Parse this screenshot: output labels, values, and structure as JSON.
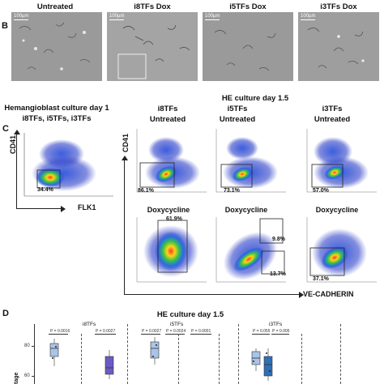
{
  "panel_b": {
    "letter": "B",
    "columns": [
      "Untreated",
      "i8TFs Dox",
      "i5TFs Dox",
      "i3TFs Dox"
    ],
    "scale_bar": "100µm"
  },
  "panel_c": {
    "letter": "C",
    "left_title_line1": "Hemangioblast culture day 1",
    "left_title_line2": "i8TFs, i5TFs, i3TFs",
    "he_title": "HE culture day 1.5",
    "lines": [
      "i8TFs",
      "i5TFs",
      "i3TFs"
    ],
    "untreated_label": "Untreated",
    "dox_label": "Doxycycline",
    "hb_x_axis": "FLK1",
    "hb_y_axis": "CD41",
    "he_y_axis": "CD41",
    "he_x_axis": "VE-CADHERIN",
    "hb_gate_pct": "34.4%",
    "untreated_pcts": [
      "86.1%",
      "73.1%",
      "57.0%"
    ],
    "dox_pct_i8": "61.9%",
    "dox_pct_i5_top": "9.8%",
    "dox_pct_i5_bottom": "13.7%",
    "dox_pct_i3": "37.1%"
  },
  "panel_d": {
    "letter": "D",
    "title": "HE culture day 1.5",
    "y_label": "tage",
    "y_ticks": [
      "80",
      "60"
    ],
    "groups": [
      {
        "name": "i8TFs",
        "pvals": [
          "P = 0.0016",
          "P = 0.0027"
        ]
      },
      {
        "name": "i5TFs",
        "pvals": [
          "P = 0.0027",
          "P = 0.0024",
          "P = 0.0001"
        ]
      },
      {
        "name": "i3TFs",
        "pvals": [
          "P = 0.055",
          "P = 0.005"
        ]
      }
    ],
    "colors": {
      "light": "#a9c4e6",
      "mid": "#5b8fd0",
      "purple": "#6a5bc4",
      "dark": "#2f6fb5"
    }
  }
}
